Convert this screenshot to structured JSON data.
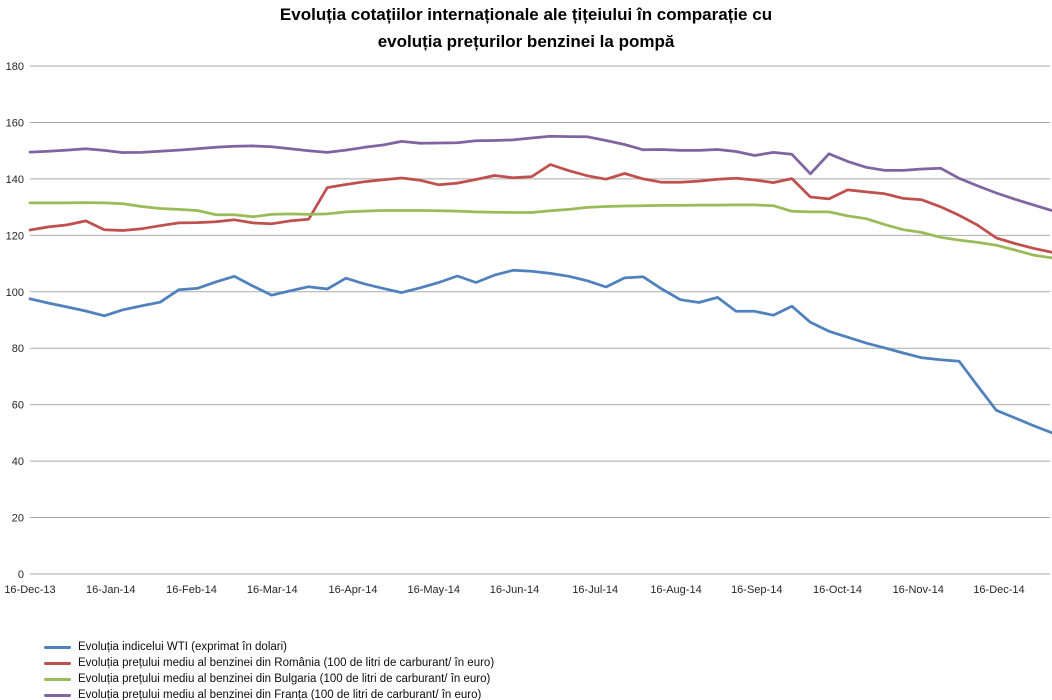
{
  "title": {
    "line1": "Evoluția cotațiilor internaționale ale țițeiului în comparație cu",
    "line2": "evoluția prețurilor benzinei la pompă"
  },
  "chart_data": {
    "type": "line",
    "title": "Evoluția cotațiilor internaționale ale țițeiului în comparație cu evoluția prețurilor benzinei la pompă",
    "xlabel": "",
    "ylabel": "",
    "ylim": [
      0,
      180
    ],
    "y_ticks": [
      0,
      20,
      40,
      60,
      80,
      100,
      120,
      140,
      160,
      180
    ],
    "grid": "horizontal",
    "gridline_color": "#ABABAB",
    "legend_position": "bottom-left",
    "x_labels": [
      "16-Dec-13",
      "16-Jan-14",
      "16-Feb-14",
      "16-Mar-14",
      "16-Apr-14",
      "16-May-14",
      "16-Jun-14",
      "16-Jul-14",
      "16-Aug-14",
      "16-Sep-14",
      "16-Oct-14",
      "16-Nov-14",
      "16-Dec-14"
    ],
    "x_frequency": "weekly",
    "series": [
      {
        "name": "Evoluția indicelui WTI (exprimat în dolari)",
        "color": "#4F81BD",
        "values": [
          97.5,
          96.0,
          94.6,
          93.2,
          91.5,
          93.6,
          95.0,
          96.3,
          100.7,
          101.2,
          103.5,
          105.5,
          102.0,
          98.8,
          100.3,
          101.8,
          101.0,
          104.8,
          102.8,
          101.2,
          99.7,
          101.4,
          103.3,
          105.6,
          103.3,
          105.9,
          107.6,
          107.3,
          106.5,
          105.5,
          103.9,
          101.7,
          104.9,
          105.3,
          101.0,
          97.2,
          96.2,
          98.0,
          93.1,
          93.1,
          91.7,
          94.9,
          89.2,
          86.0,
          83.9,
          81.8,
          80.1,
          78.3,
          76.6,
          75.9,
          75.4,
          66.6,
          58.0,
          55.3,
          52.6,
          50.0
        ]
      },
      {
        "name": "Evoluția prețului mediu al benzinei din România (100 de litri de carburant/ în euro)",
        "color": "#C0504D",
        "values": [
          121.9,
          123.0,
          123.7,
          125.1,
          122.0,
          121.7,
          122.3,
          123.4,
          124.4,
          124.5,
          124.8,
          125.5,
          124.4,
          124.1,
          125.1,
          125.7,
          136.9,
          138.0,
          139.0,
          139.7,
          140.3,
          139.5,
          137.9,
          138.5,
          139.8,
          141.2,
          140.4,
          140.8,
          145.1,
          142.9,
          141.1,
          139.9,
          141.9,
          140.0,
          138.8,
          138.8,
          139.2,
          139.9,
          140.2,
          139.6,
          138.7,
          140.1,
          133.6,
          132.9,
          136.1,
          135.4,
          134.7,
          133.1,
          132.6,
          130.1,
          127.1,
          123.6,
          119.1,
          117.1,
          115.4,
          114.0
        ]
      },
      {
        "name": "Evoluția prețului mediu al benzinei din Bulgaria (100 de litri de carburant/ în euro)",
        "color": "#9BBB59",
        "values": [
          131.5,
          131.5,
          131.5,
          131.6,
          131.5,
          131.2,
          130.2,
          129.5,
          129.2,
          128.8,
          127.3,
          127.3,
          126.6,
          127.4,
          127.6,
          127.4,
          127.6,
          128.3,
          128.6,
          128.8,
          128.8,
          128.8,
          128.7,
          128.6,
          128.3,
          128.2,
          128.1,
          128.1,
          128.7,
          129.2,
          129.9,
          130.2,
          130.4,
          130.5,
          130.6,
          130.6,
          130.7,
          130.7,
          130.8,
          130.8,
          130.5,
          128.5,
          128.3,
          128.3,
          126.9,
          125.9,
          123.8,
          122.0,
          121.0,
          119.3,
          118.3,
          117.5,
          116.5,
          114.8,
          113.0,
          112.0
        ]
      },
      {
        "name": "Evoluția prețului mediu al benzinei din Franța (100 de litri de carburant/ în euro)",
        "color": "#8064A2",
        "values": [
          149.5,
          149.8,
          150.2,
          150.7,
          150.1,
          149.3,
          149.4,
          149.8,
          150.2,
          150.7,
          151.2,
          151.6,
          151.7,
          151.4,
          150.7,
          150.0,
          149.4,
          150.2,
          151.2,
          152.0,
          153.3,
          152.6,
          152.7,
          152.8,
          153.5,
          153.6,
          153.8,
          154.5,
          155.1,
          155.0,
          154.9,
          153.6,
          152.2,
          150.3,
          150.4,
          150.1,
          150.1,
          150.4,
          149.7,
          148.3,
          149.4,
          148.7,
          141.8,
          148.9,
          146.2,
          144.1,
          143.0,
          143.0,
          143.5,
          143.8,
          140.2,
          137.5,
          135.0,
          132.8,
          130.8,
          128.8
        ]
      }
    ]
  }
}
